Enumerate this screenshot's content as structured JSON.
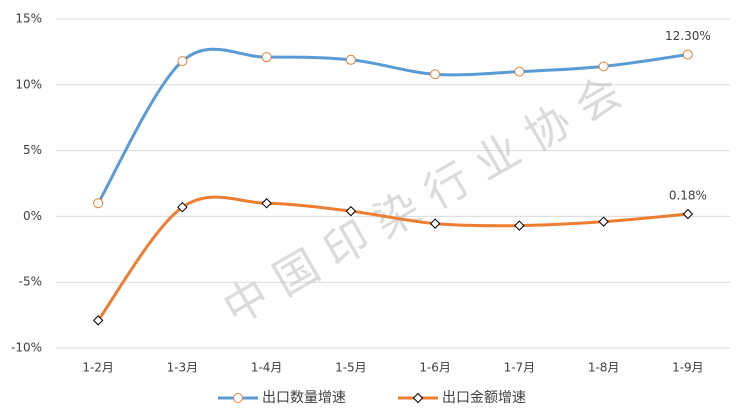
{
  "chart_data": {
    "type": "line",
    "watermark": "中国印染行业协会",
    "categories": [
      "1-2月",
      "1-3月",
      "1-4月",
      "1-5月",
      "1-6月",
      "1-7月",
      "1-8月",
      "1-9月"
    ],
    "series": [
      {
        "name": "出口数量增速",
        "color": "#5b9bd5",
        "marker": "circle",
        "marker_edge": "#ed7d31",
        "values": [
          1.0,
          11.8,
          12.1,
          11.9,
          10.8,
          11.0,
          11.4,
          12.3
        ],
        "value_labels": [
          null,
          null,
          null,
          null,
          null,
          null,
          null,
          "12.30%"
        ]
      },
      {
        "name": "出口金额增速",
        "color": "#ed7d31",
        "marker": "diamond",
        "marker_edge": "#000000",
        "values": [
          -7.9,
          0.7,
          1.0,
          0.4,
          -0.55,
          -0.7,
          -0.4,
          0.18
        ],
        "value_labels": [
          null,
          null,
          null,
          null,
          null,
          null,
          null,
          "0.18%"
        ]
      }
    ],
    "ylim": [
      -10,
      15
    ],
    "yticks": [
      {
        "value": -10,
        "label": "-10%"
      },
      {
        "value": -5,
        "label": "-5%"
      },
      {
        "value": 0,
        "label": "0%"
      },
      {
        "value": 5,
        "label": "5%"
      },
      {
        "value": 10,
        "label": "10%"
      },
      {
        "value": 15,
        "label": "15%"
      }
    ],
    "grid": true,
    "smooth": true,
    "legend": "bottom"
  }
}
